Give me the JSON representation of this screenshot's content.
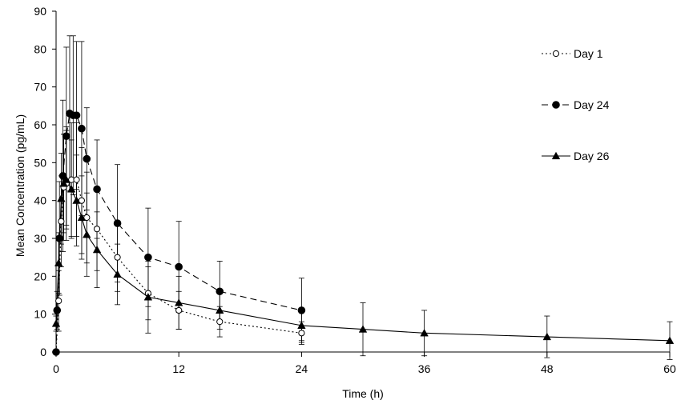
{
  "chart_data": {
    "type": "line",
    "title": "",
    "xlabel": "Time (h)",
    "ylabel": "Mean Concentration (pg/mL)",
    "xlim": [
      0,
      60
    ],
    "ylim": [
      0,
      90
    ],
    "xticks": [
      0,
      12,
      24,
      36,
      48,
      60
    ],
    "yticks": [
      0,
      10,
      20,
      30,
      40,
      50,
      60,
      70,
      80,
      90
    ],
    "grid": false,
    "legend_position": "right",
    "series": [
      {
        "name": "Day 1",
        "line_style": "dotted",
        "marker": "open-circle",
        "x": [
          0,
          0.25,
          0.5,
          0.75,
          1,
          1.5,
          2,
          2.5,
          3,
          4,
          6,
          9,
          12,
          16,
          24
        ],
        "y": [
          0,
          13.5,
          34.5,
          43.5,
          44.5,
          45.5,
          45.5,
          40,
          35.5,
          32.5,
          25,
          15.5,
          11,
          8,
          5
        ],
        "err": [
          0,
          8,
          12,
          14,
          15,
          15,
          15,
          14,
          12,
          11,
          9,
          7,
          5,
          4,
          3
        ]
      },
      {
        "name": "Day 24",
        "line_style": "dashed",
        "marker": "filled-circle",
        "x": [
          0,
          0.1,
          0.33,
          0.67,
          1,
          1.33,
          1.67,
          2,
          2.5,
          3,
          4,
          6,
          9,
          12,
          16,
          24
        ],
        "y": [
          0,
          11,
          30,
          46.5,
          57,
          63,
          62.5,
          62.5,
          59,
          51,
          43,
          34,
          25,
          22.5,
          16,
          11
        ],
        "err": [
          0,
          5,
          15,
          20,
          23.5,
          20.5,
          21,
          19.5,
          23,
          13.5,
          13,
          15.5,
          13,
          12,
          8,
          8.5
        ]
      },
      {
        "name": "Day 26",
        "line_style": "solid",
        "marker": "filled-triangle",
        "x": [
          0,
          0.25,
          0.5,
          0.75,
          1,
          1.5,
          2,
          2.5,
          3,
          4,
          6,
          9,
          12,
          16,
          24,
          30,
          36,
          48,
          60
        ],
        "y": [
          7.5,
          23.5,
          40.5,
          44.5,
          45.5,
          43,
          40,
          35.5,
          31,
          27,
          20.5,
          14.5,
          13,
          11,
          7,
          6,
          5,
          4,
          3
        ],
        "err": [
          2,
          8,
          12,
          13,
          13,
          13,
          12,
          11,
          11,
          10,
          8,
          9.5,
          7,
          5,
          4,
          7,
          6,
          5.5,
          5
        ]
      }
    ]
  }
}
